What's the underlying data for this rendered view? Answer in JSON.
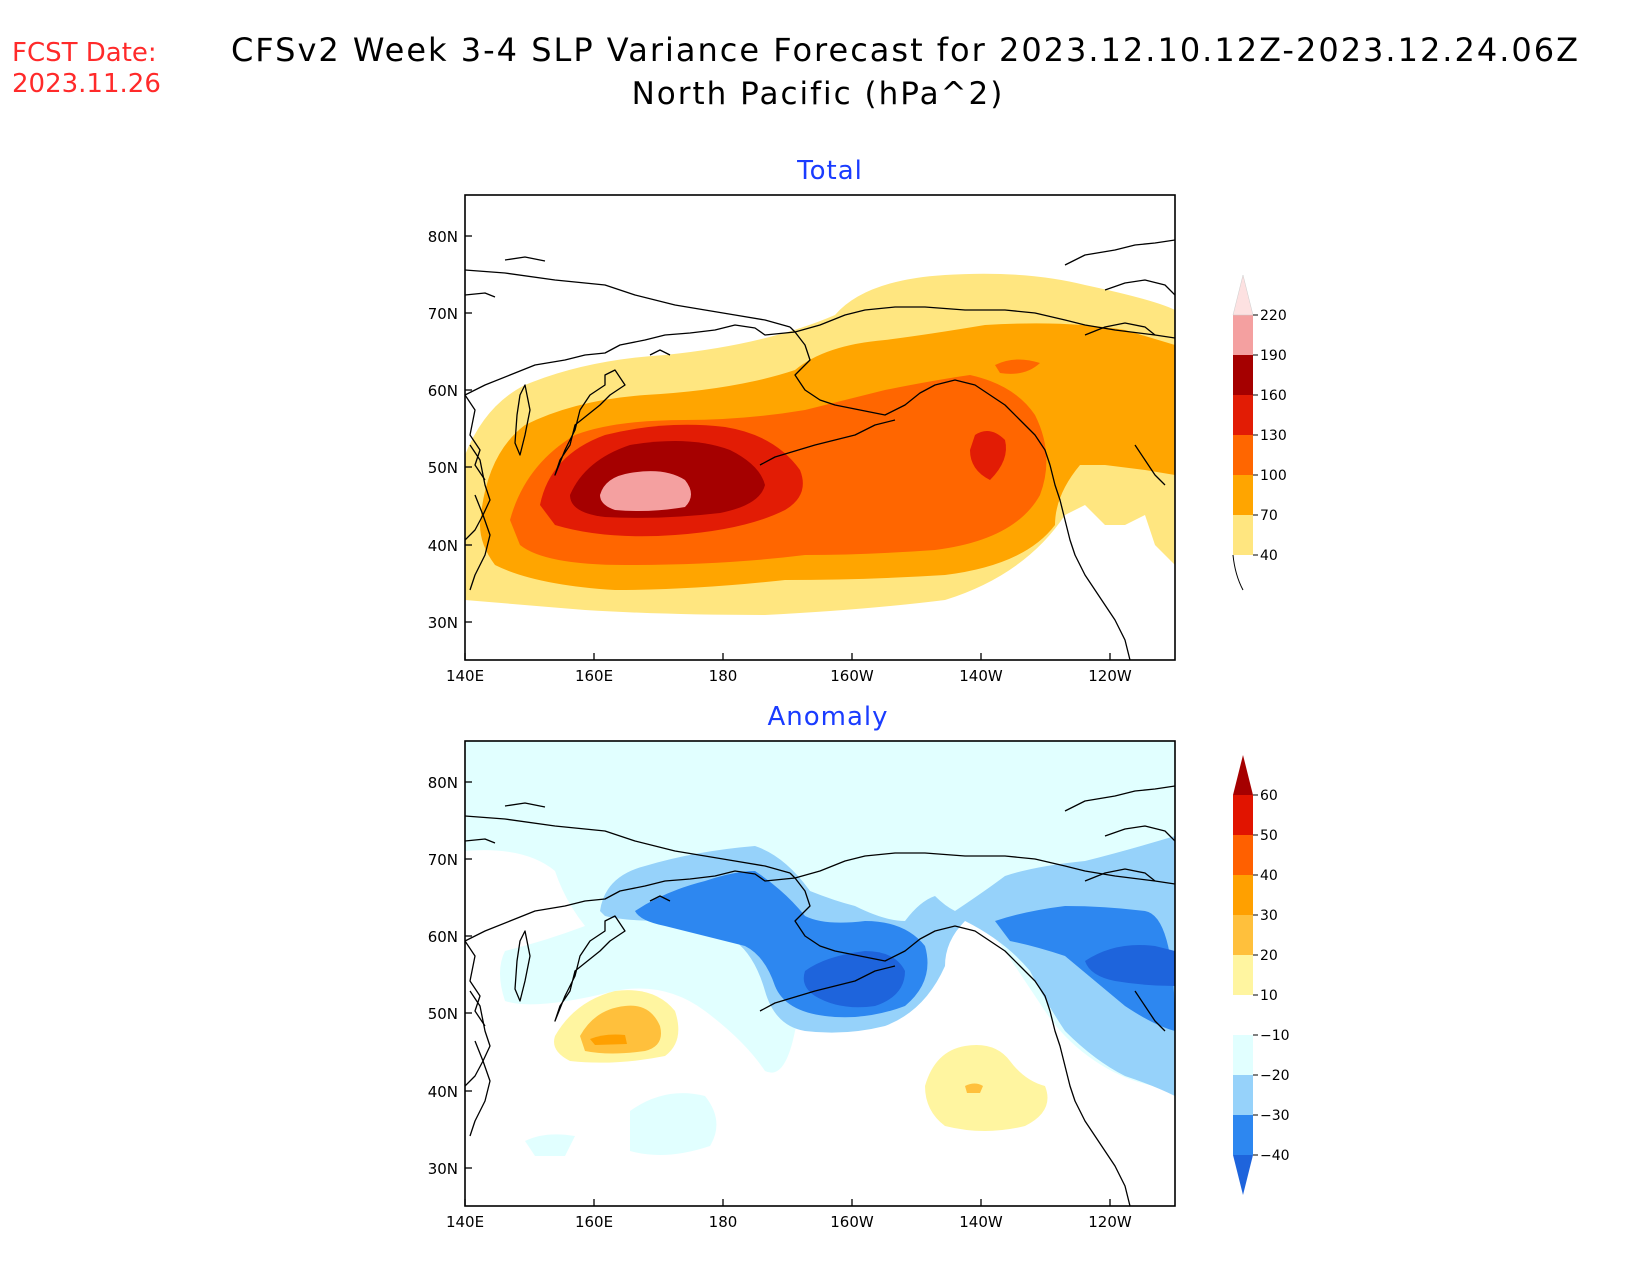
{
  "header": {
    "fcst_label": "FCST Date:",
    "fcst_date": "2023.11.26",
    "title_line1": "CFSv2 Week 3-4 SLP Variance Forecast for 2023.12.10.12Z-2023.12.24.06Z",
    "title_line2": "North Pacific (hPa^2)"
  },
  "map_axes": {
    "lat_labels": [
      "80N",
      "70N",
      "60N",
      "50N",
      "40N",
      "30N"
    ],
    "lon_labels": [
      "140E",
      "160E",
      "180",
      "160W",
      "140W",
      "120W"
    ]
  },
  "panels": [
    {
      "title": "Total",
      "colorbar": {
        "levels": [
          "40",
          "70",
          "100",
          "130",
          "160",
          "190",
          "220"
        ],
        "colors": [
          "#ffe680",
          "#ffa500",
          "#ff6600",
          "#e21c05",
          "#a50000",
          "#f4a0a0",
          "#fde1e1"
        ]
      }
    },
    {
      "title": "Anomaly",
      "colorbar": {
        "levels": [
          "-40",
          "-30",
          "-20",
          "-10",
          "10",
          "20",
          "30",
          "40",
          "50",
          "60"
        ],
        "colors": [
          "#1e64dc",
          "#2d87f0",
          "#96d2fa",
          "#e1ffff",
          "#ffffff",
          "#fff5a0",
          "#ffc03c",
          "#ffa000",
          "#ff6000",
          "#e11400",
          "#a50000"
        ]
      }
    }
  ]
}
